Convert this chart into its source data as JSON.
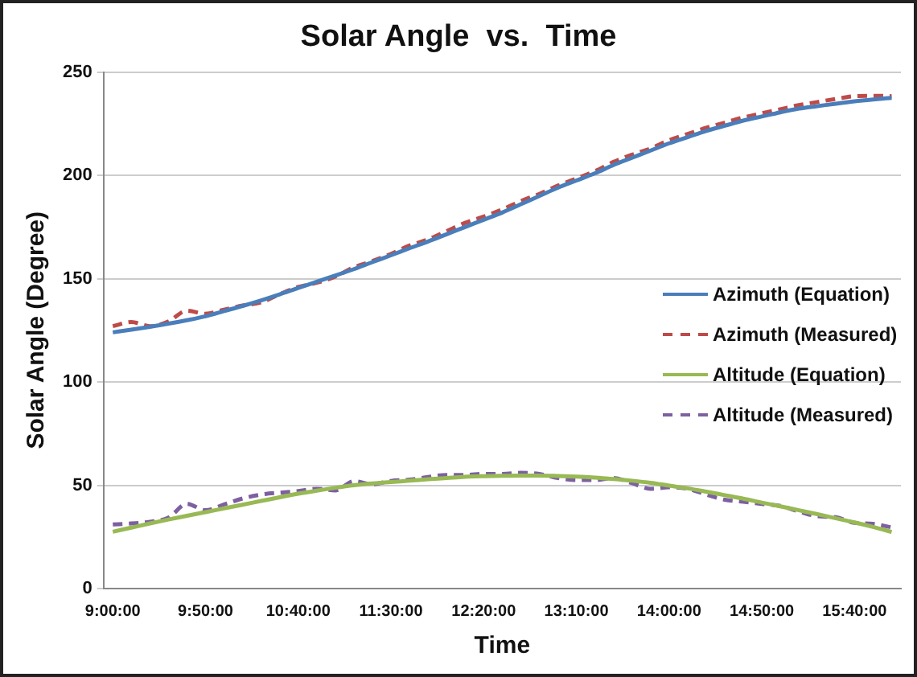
{
  "chart_data": {
    "type": "line",
    "title": "Solar Angle  vs.  Time",
    "xlabel": "Time",
    "ylabel": "Solar Angle (Degree)",
    "categories": [
      "9:00:00",
      null,
      null,
      null,
      null,
      "9:50:00",
      null,
      null,
      null,
      null,
      "10:40:00",
      null,
      null,
      null,
      null,
      "11:30:00",
      null,
      null,
      null,
      null,
      "12:20:00",
      null,
      null,
      null,
      null,
      "13:10:00",
      null,
      null,
      null,
      null,
      "14:00:00",
      null,
      null,
      null,
      null,
      "14:50:00",
      null,
      null,
      null,
      null,
      "15:40:00",
      null,
      null
    ],
    "ylim": [
      0,
      250
    ],
    "yticks": [
      0,
      50,
      100,
      150,
      200,
      250
    ],
    "grid": "y",
    "legend": "right",
    "marker": "none",
    "series": [
      {
        "name": "Azimuth (Equation)",
        "color": "#4a7ebb",
        "line_style": "solid",
        "values": [
          124,
          125.3,
          126.7,
          128.2,
          129.9,
          131.8,
          134.3,
          136.8,
          139.5,
          142.4,
          145.5,
          148.5,
          151.5,
          154.6,
          158,
          161.3,
          164.7,
          168,
          171.5,
          175,
          178.5,
          182,
          186,
          190,
          194,
          197.5,
          201,
          205,
          208.5,
          212,
          215.5,
          218.5,
          221.5,
          224,
          226.5,
          228.5,
          230.5,
          232.3,
          233.5,
          234.7,
          235.8,
          236.7,
          237.5
        ]
      },
      {
        "name": "Azimuth (Measured)",
        "color": "#be4b48",
        "line_style": "dashed",
        "values": [
          127,
          129,
          127,
          129.3,
          134.5,
          133,
          135,
          137,
          138.5,
          142.5,
          146,
          148,
          151,
          155.5,
          158.5,
          162,
          166,
          169,
          173,
          177,
          180,
          183.5,
          187.5,
          191,
          195,
          198.5,
          202,
          206.5,
          210,
          213,
          217,
          220,
          223,
          225.5,
          228,
          230,
          232,
          234,
          235.5,
          237,
          238.3,
          238.5,
          238.3
        ]
      },
      {
        "name": "Altitude (Equation)",
        "color": "#98b954",
        "line_style": "solid",
        "values": [
          27.5,
          29.5,
          31.5,
          33.4,
          35.2,
          37,
          38.8,
          40.6,
          42.4,
          44.2,
          45.9,
          47.4,
          48.8,
          50,
          50.9,
          51.6,
          52.2,
          52.9,
          53.5,
          54.1,
          54.4,
          54.6,
          54.7,
          54.7,
          54.5,
          54.2,
          53.7,
          53,
          52.2,
          51.2,
          49.8,
          48.5,
          46.9,
          45.2,
          43.5,
          41.6,
          39.8,
          37.9,
          36,
          34,
          32,
          29.8,
          27.4
        ]
      },
      {
        "name": "Altitude (Measured)",
        "color": "#7d60a0",
        "line_style": "dashed",
        "values": [
          31,
          31.5,
          32.3,
          34.3,
          41,
          37.9,
          40.7,
          43.6,
          45.5,
          46.4,
          47.2,
          48.3,
          47.5,
          52,
          50.5,
          52.1,
          52.7,
          54,
          55,
          55,
          55.5,
          55.5,
          56,
          55.5,
          53.5,
          52.5,
          52.5,
          53.5,
          51,
          48.3,
          49,
          48.3,
          45.5,
          43,
          42,
          41,
          40,
          37.3,
          35,
          34.5,
          31.8,
          31.3,
          29.6
        ]
      }
    ]
  }
}
